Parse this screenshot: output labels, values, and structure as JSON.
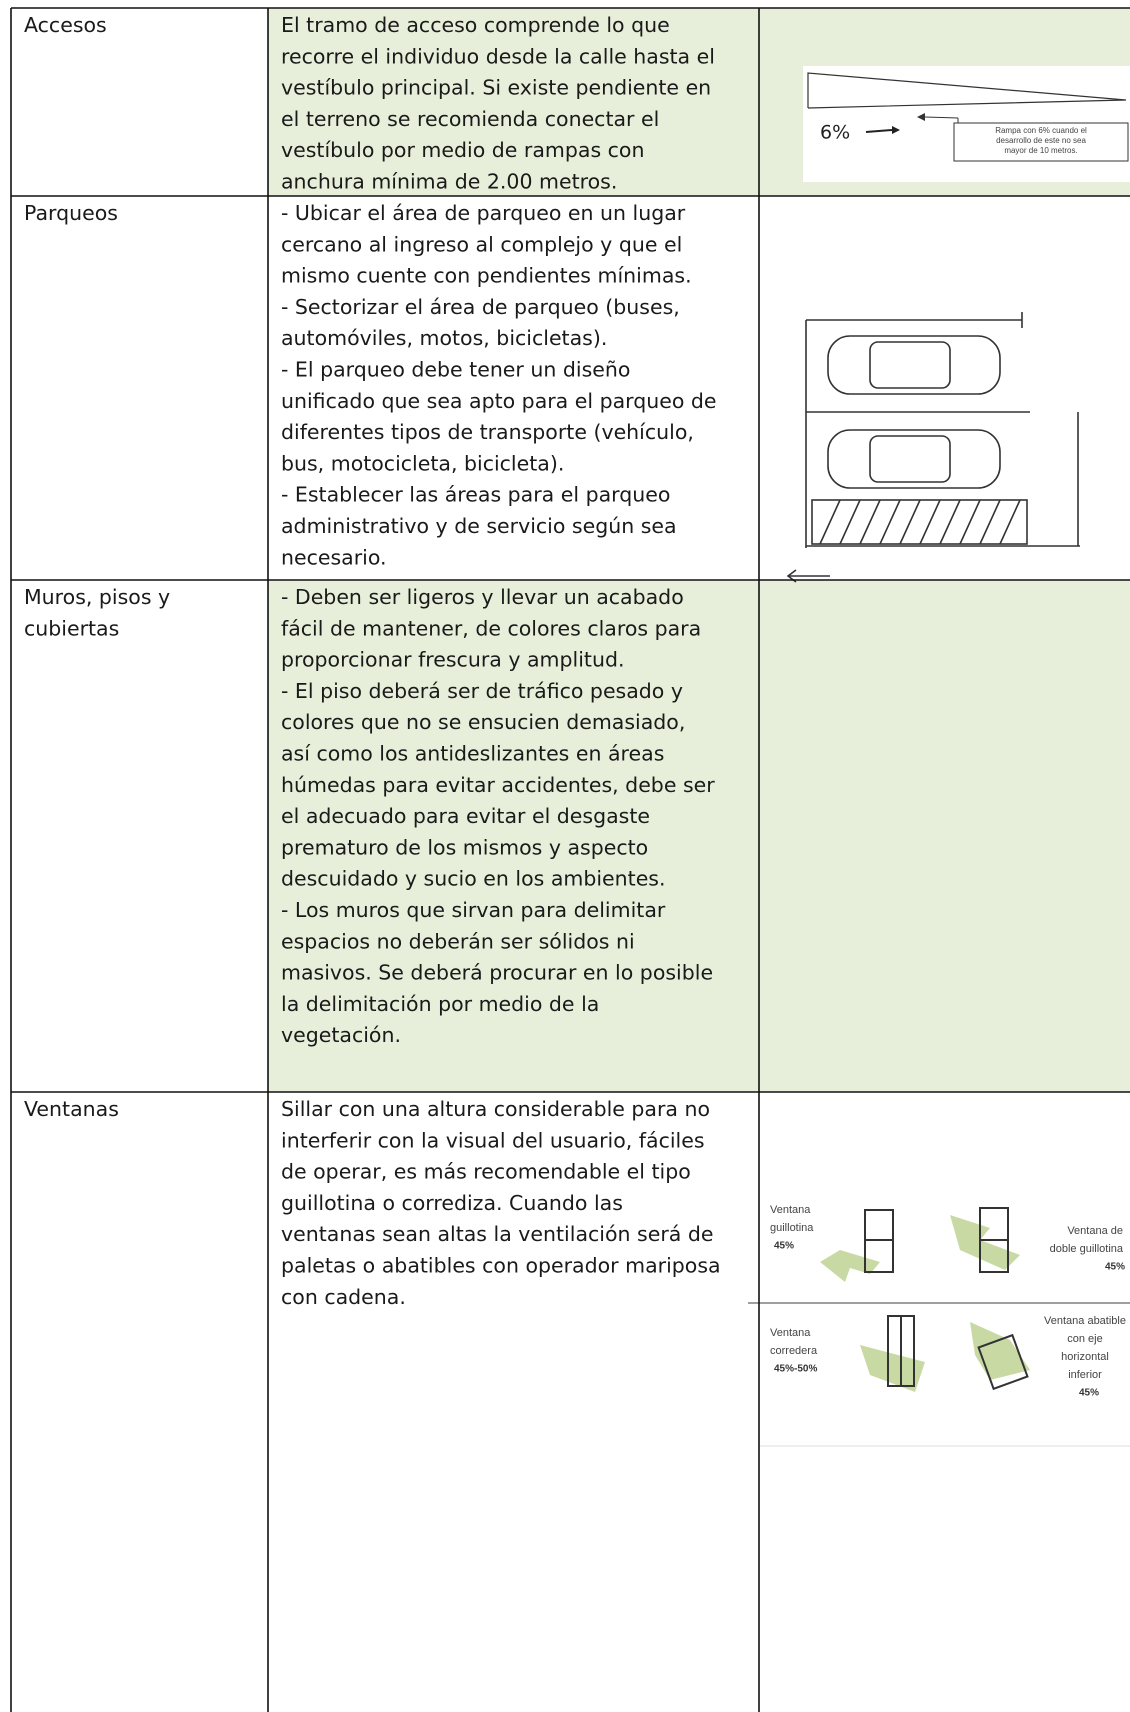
{
  "table": {
    "rows": [
      {
        "label": [
          "Accesos"
        ],
        "text": [
          "El tramo de acceso comprende lo que",
          "recorre el individuo desde la calle hasta el",
          "vestíbulo principal. Si existe pendiente en",
          "el terreno se recomienda conectar el",
          "vestíbulo por medio de rampas con",
          "anchura mínima de 2.00 metros."
        ],
        "figure": {
          "slope": "6%",
          "note": [
            "Rampa con 6% cuando el",
            "desarrollo de este no sea",
            "mayor de 10 metros."
          ]
        }
      },
      {
        "label": [
          "Parqueos"
        ],
        "text": [
          "- Ubicar el área de parqueo en un lugar",
          "cercano al ingreso al complejo y que el",
          "mismo cuente con pendientes mínimas.",
          "- Sectorizar  el área de parqueo (buses,",
          "automóviles, motos, bicicletas).",
          "-  El parqueo debe tener un diseño",
          "unificado que sea apto para el parqueo de",
          "diferentes tipos de transporte  (vehículo,",
          "bus, motocicleta, bicicleta).",
          "- Establecer las áreas para el parqueo",
          "administrativo y de servicio según sea",
          "necesario."
        ]
      },
      {
        "label": [
          "Muros, pisos y",
          "cubiertas"
        ],
        "text": [
          "- Deben ser ligeros y llevar un acabado",
          "fácil de mantener, de colores claros para",
          "proporcionar frescura y amplitud.",
          "- El piso deberá ser de tráfico pesado y",
          "colores que no se ensucien demasiado,",
          "así como los antideslizantes en áreas",
          "húmedas para evitar accidentes, debe ser",
          "el adecuado para  evitar  el desgaste",
          "prematuro de los mismos y aspecto",
          "descuidado y sucio en los ambientes.",
          "- Los muros que sirvan para delimitar",
          "espacios no deberán ser sólidos ni",
          "masivos. Se deberá procurar en lo posible",
          "la delimitación por medio de la",
          "vegetación."
        ]
      },
      {
        "label": [
          "Ventanas"
        ],
        "text": [
          "Sillar con una altura considerable  para no",
          "interferir con la visual del usuario, fáciles",
          "de operar, es más recomendable el tipo",
          "guillotina o corrediza. Cuando las",
          "ventanas sean altas la ventilación será de",
          "paletas o abatibles con operador mariposa",
          "con cadena."
        ],
        "figure": {
          "windows": [
            {
              "label": [
                "Ventana",
                "guillotina"
              ],
              "pct": "45%"
            },
            {
              "label": [
                "Ventana de",
                "doble guillotina"
              ],
              "pct": "45%"
            },
            {
              "label": [
                "Ventana",
                "corredera"
              ],
              "pct": "45%-50%"
            },
            {
              "label": [
                "Ventana abatible",
                "con eje",
                "horizontal",
                "inferior"
              ],
              "pct": "45%"
            }
          ]
        }
      }
    ]
  }
}
